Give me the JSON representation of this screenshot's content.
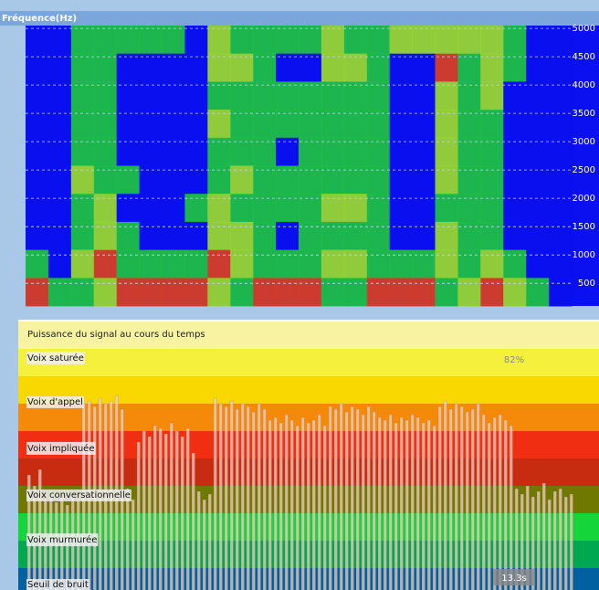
{
  "chart_data": [
    {
      "type": "heatmap",
      "title": "Fréquence(Hz)",
      "ylim": [
        100,
        5050
      ],
      "yticks": [
        500,
        1000,
        1500,
        2000,
        2500,
        3000,
        3500,
        4000,
        4500,
        5000
      ],
      "grid": true,
      "colors": [
        "#0a10f0",
        "#1ec83c",
        "#9ee028",
        "#e0401a"
      ],
      "values": [
        [
          0,
          0,
          0,
          0,
          0,
          0,
          0,
          0,
          1,
          3
        ],
        [
          0,
          0,
          0,
          0,
          0,
          0,
          0,
          0,
          0,
          1
        ],
        [
          1,
          1,
          1,
          1,
          1,
          2,
          1,
          1,
          2,
          1
        ],
        [
          1,
          1,
          1,
          1,
          1,
          1,
          2,
          2,
          3,
          2
        ],
        [
          1,
          0,
          0,
          0,
          0,
          1,
          0,
          1,
          1,
          3
        ],
        [
          1,
          0,
          0,
          0,
          0,
          0,
          0,
          0,
          1,
          3
        ],
        [
          1,
          0,
          0,
          0,
          0,
          0,
          0,
          0,
          1,
          3
        ],
        [
          0,
          0,
          0,
          0,
          0,
          0,
          1,
          0,
          1,
          3
        ],
        [
          2,
          2,
          1,
          2,
          1,
          1,
          2,
          2,
          3,
          2
        ],
        [
          1,
          2,
          1,
          1,
          1,
          2,
          1,
          2,
          2,
          1
        ],
        [
          1,
          1,
          1,
          1,
          1,
          1,
          1,
          1,
          1,
          3
        ],
        [
          1,
          0,
          1,
          1,
          0,
          1,
          1,
          0,
          1,
          3
        ],
        [
          1,
          0,
          1,
          1,
          1,
          1,
          1,
          1,
          1,
          3
        ],
        [
          2,
          2,
          1,
          1,
          1,
          1,
          2,
          1,
          2,
          1
        ],
        [
          1,
          2,
          1,
          1,
          1,
          1,
          2,
          1,
          2,
          1
        ],
        [
          1,
          1,
          1,
          1,
          1,
          1,
          1,
          1,
          1,
          3
        ],
        [
          2,
          0,
          0,
          0,
          0,
          0,
          0,
          0,
          1,
          3
        ],
        [
          2,
          0,
          0,
          0,
          0,
          0,
          0,
          0,
          1,
          3
        ],
        [
          2,
          3,
          2,
          2,
          2,
          2,
          1,
          2,
          2,
          1
        ],
        [
          2,
          1,
          1,
          1,
          1,
          1,
          1,
          1,
          1,
          2
        ],
        [
          2,
          2,
          2,
          1,
          1,
          1,
          1,
          1,
          2,
          3
        ],
        [
          1,
          1,
          0,
          0,
          0,
          0,
          0,
          0,
          1,
          2
        ],
        [
          0,
          0,
          0,
          0,
          0,
          0,
          0,
          0,
          0,
          1
        ],
        [
          0,
          0,
          0,
          0,
          0,
          0,
          0,
          0,
          0,
          0
        ]
      ]
    },
    {
      "type": "bar",
      "title": "Puissance du signal au cours du temps",
      "ylim": [
        0,
        9
      ],
      "color": "#f6d2c2",
      "bands": [
        "#0060a0",
        "#00a850",
        "#14d63a",
        "#6f7800",
        "#c82c10",
        "#f02e12",
        "#f58a0a",
        "#f8d800",
        "#f5f03c"
      ],
      "zones": [
        {
          "label": "Voix saturée",
          "level": 8.67
        },
        {
          "label": "Voix d'appel",
          "level": 7.07
        },
        {
          "label": "Voix impliquée",
          "level": 5.37
        },
        {
          "label": "Voix conversationnelle",
          "level": 3.67
        },
        {
          "label": "Voix murmurée",
          "level": 2.03
        },
        {
          "label": "Seuil de bruit",
          "level": 0.4
        }
      ],
      "percent_label": "82%",
      "duration_label": "13.3s",
      "values": [
        4.4,
        4.0,
        4.6,
        3.5,
        3.7,
        3.4,
        3.6,
        3.3,
        3.7,
        3.5,
        7.0,
        7.1,
        6.9,
        7.2,
        7.0,
        7.1,
        7.3,
        6.8,
        3.9,
        3.5,
        5.6,
        6.0,
        5.8,
        6.2,
        6.1,
        5.9,
        6.3,
        6.0,
        5.8,
        6.1,
        5.2,
        3.8,
        3.5,
        3.7,
        7.2,
        7.0,
        6.9,
        7.1,
        6.8,
        7.0,
        6.9,
        6.7,
        7.0,
        6.8,
        6.4,
        6.5,
        6.3,
        6.6,
        6.4,
        6.2,
        6.5,
        6.3,
        6.4,
        6.6,
        6.2,
        6.9,
        6.8,
        7.0,
        6.7,
        6.9,
        6.8,
        6.6,
        6.9,
        6.7,
        6.5,
        6.4,
        6.6,
        6.3,
        6.5,
        6.4,
        6.6,
        6.5,
        6.3,
        6.4,
        6.2,
        6.9,
        7.1,
        6.8,
        7.0,
        6.9,
        6.7,
        6.8,
        7.0,
        6.6,
        6.3,
        6.5,
        6.6,
        6.4,
        6.2,
        3.9,
        3.7,
        4.0,
        3.6,
        3.8,
        4.1,
        3.5,
        3.8,
        3.9,
        3.6,
        3.7
      ]
    }
  ]
}
